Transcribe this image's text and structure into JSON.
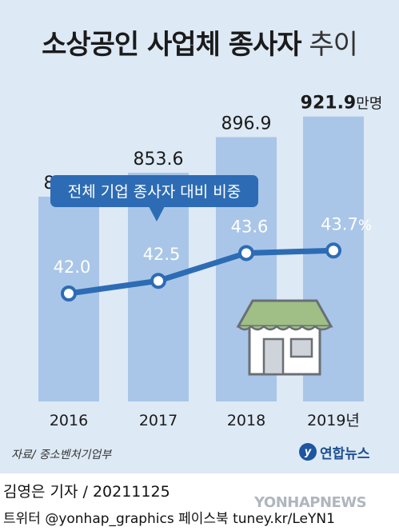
{
  "title": {
    "main": "소상공인 사업체 종사자",
    "sub": "추이"
  },
  "chart_data": {
    "type": "bar",
    "categories": [
      "2016",
      "2017",
      "2018",
      "2019년"
    ],
    "bar_values": [
      824.6,
      853.6,
      896.9,
      921.9
    ],
    "bar_value_labels": [
      "824.6",
      "853.6",
      "896.9",
      "921.9"
    ],
    "bar_unit": "만명",
    "line_values": [
      42.0,
      42.5,
      43.6,
      43.7
    ],
    "line_value_labels": [
      "42.0",
      "42.5",
      "43.6",
      "43.7"
    ],
    "line_unit": "%",
    "line_callout": "전체 기업 종사자 대비 비중",
    "colors": {
      "bar": "#a9c6e8",
      "line": "#2d6cb4",
      "callout": "#2d6cb4",
      "background": "#dde9f5"
    }
  },
  "source": "자료/ 중소벤처기업부",
  "logo_text": "연합뉴스",
  "logo_icon": "yonhap-logo-icon",
  "credits": {
    "reporter": "김영은 기자",
    "date": "20211125",
    "social": "트위터 @yonhap_graphics  페이스북 tuney.kr/LeYN1"
  },
  "watermark": "YONHAPNEWS",
  "illustration": "store-icon"
}
